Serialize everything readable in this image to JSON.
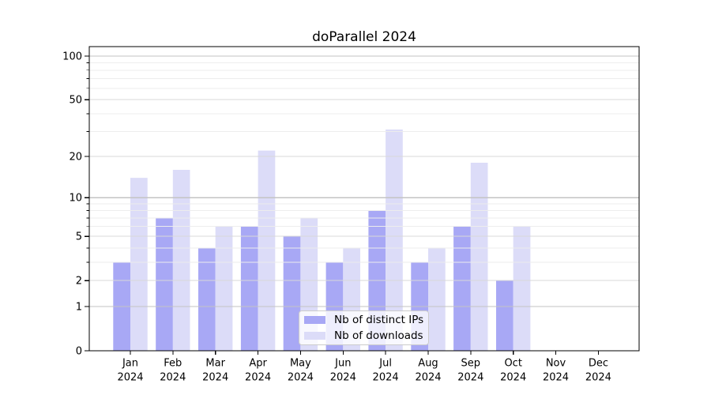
{
  "chart_data": {
    "type": "bar",
    "title": "doParallel 2024",
    "categories": [
      "Jan 2024",
      "Feb 2024",
      "Mar 2024",
      "Apr 2024",
      "May 2024",
      "Jun 2024",
      "Jul 2024",
      "Aug 2024",
      "Sep 2024",
      "Oct 2024",
      "Nov 2024",
      "Dec 2024"
    ],
    "series": [
      {
        "name": "Nb of distinct IPs",
        "color": "#a8a8f5",
        "values": [
          3,
          7,
          4,
          6,
          5,
          3,
          8,
          3,
          6,
          2,
          0,
          0
        ]
      },
      {
        "name": "Nb of downloads",
        "color": "#dcdcf8",
        "values": [
          14,
          16,
          6,
          22,
          7,
          4,
          31,
          4,
          18,
          6,
          0,
          0
        ]
      }
    ],
    "xlabel": "",
    "ylabel": "",
    "yscale": "log1p",
    "ylim": [
      0,
      117
    ],
    "yticks": [
      0,
      1,
      2,
      5,
      10,
      20,
      50,
      100
    ],
    "minor_yticks": [
      3,
      4,
      6,
      7,
      8,
      9,
      30,
      40,
      60,
      70,
      80,
      90
    ],
    "grid": true,
    "legend_position": "lower center",
    "colors": {
      "axis": "#000000",
      "grid_major": "#c3c3c3",
      "grid_labeled": "#d8d8d8",
      "grid_minor": "#ededed",
      "legend_border": "#cccccc",
      "background": "#ffffff"
    }
  }
}
